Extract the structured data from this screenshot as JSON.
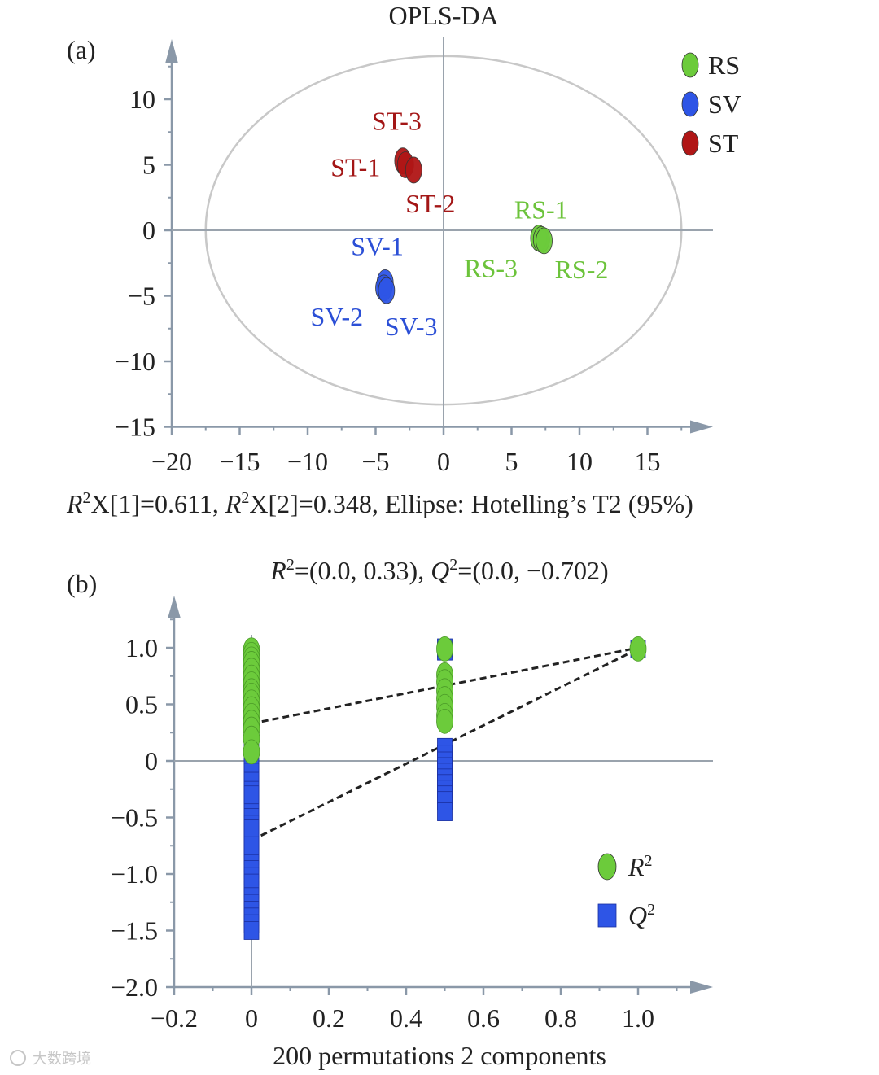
{
  "chart_data": [
    {
      "panel_label": "(a)",
      "type": "scatter",
      "title": "OPLS-DA",
      "xlabel": "",
      "ylabel": "",
      "xlim": [
        -20,
        19
      ],
      "ylim": [
        -15,
        14
      ],
      "xticks": [
        -20,
        -15,
        -10,
        -5,
        0,
        5,
        10,
        15
      ],
      "yticks": [
        -15,
        -10,
        -5,
        0,
        5,
        10
      ],
      "xtick_labels": [
        "−20",
        "−15",
        "−10",
        "−5",
        "0",
        "5",
        "10",
        "15"
      ],
      "ytick_labels": [
        "−15",
        "−10",
        "−5",
        "0",
        "5",
        "10"
      ],
      "caption_parts": [
        "R",
        "2",
        "X[1]=0.611, ",
        "R",
        "2",
        "X[2]=0.348, Ellipse: Hotelling’s T2 (95%)"
      ],
      "ellipse": {
        "cx": 0,
        "cy": 0,
        "rx": 17.5,
        "ry": 13.3,
        "color": "#c8c8c8"
      },
      "legend": {
        "position": "top-right",
        "entries": [
          "RS",
          "SV",
          "ST"
        ]
      },
      "series": [
        {
          "name": "RS",
          "color": "#6ccb3b",
          "text_color": "#6cc33b",
          "points": [
            {
              "label": "RS-1",
              "x": 7.0,
              "y": -0.6
            },
            {
              "label": "RS-3",
              "x": 7.2,
              "y": -0.7
            },
            {
              "label": "RS-2",
              "x": 7.4,
              "y": -0.8
            }
          ]
        },
        {
          "name": "SV",
          "color": "#2e55e6",
          "text_color": "#2b4fd6",
          "points": [
            {
              "label": "SV-1",
              "x": -4.3,
              "y": -4.0
            },
            {
              "label": "SV-2",
              "x": -4.4,
              "y": -4.4
            },
            {
              "label": "SV-3",
              "x": -4.2,
              "y": -4.6
            }
          ]
        },
        {
          "name": "ST",
          "color": "#b01616",
          "text_color": "#a31616",
          "points": [
            {
              "label": "ST-3",
              "x": -3.0,
              "y": 5.3
            },
            {
              "label": "ST-1",
              "x": -2.8,
              "y": 5.0
            },
            {
              "label": "ST-2",
              "x": -2.2,
              "y": 4.6
            }
          ]
        }
      ]
    },
    {
      "panel_label": "(b)",
      "type": "scatter",
      "title_parts": [
        "R",
        "2",
        "=(0.0, 0.33), ",
        "Q",
        "2",
        "=(0.0, −0.702)"
      ],
      "xlabel": "200 permutations 2 components",
      "ylabel": "",
      "xlim": [
        -0.2,
        1.15
      ],
      "ylim": [
        -2.0,
        1.45
      ],
      "xticks": [
        -0.2,
        0,
        0.2,
        0.4,
        0.6,
        0.8,
        1.0
      ],
      "yticks": [
        -2.0,
        -1.5,
        -1.0,
        -0.5,
        0,
        0.5,
        1.0
      ],
      "xtick_labels": [
        "−0.2",
        "0",
        "0.2",
        "0.4",
        "0.6",
        "0.8",
        "1.0"
      ],
      "ytick_labels": [
        "−2.0",
        "−1.5",
        "−1.0",
        "−0.5",
        "0",
        "0.5",
        "1.0"
      ],
      "legend": {
        "position": "bottom-right",
        "entries": [
          [
            "R",
            "2"
          ],
          [
            "Q",
            "2"
          ]
        ]
      },
      "series": [
        {
          "name": "R2",
          "marker": "circle",
          "color": "#6ccb3b",
          "x": [
            0,
            0,
            0,
            0,
            0,
            0,
            0,
            0,
            0,
            0,
            0,
            0,
            0,
            0,
            0,
            0,
            0.5,
            0.5,
            0.5,
            0.5,
            0.5,
            0.5,
            0.5,
            0.5,
            1.0
          ],
          "y": [
            0.98,
            0.94,
            0.9,
            0.86,
            0.8,
            0.74,
            0.68,
            0.62,
            0.58,
            0.52,
            0.46,
            0.4,
            0.34,
            0.28,
            0.2,
            0.08,
            0.99,
            0.76,
            0.7,
            0.62,
            0.55,
            0.48,
            0.4,
            0.35,
            0.99
          ]
        },
        {
          "name": "Q2",
          "marker": "square",
          "color": "#2e55e6",
          "x": [
            0,
            0,
            0,
            0,
            0,
            0,
            0,
            0,
            0,
            0,
            0,
            0,
            0,
            0,
            0,
            0,
            0,
            0,
            0,
            0,
            0,
            0,
            0,
            0,
            0,
            0,
            0,
            0,
            0,
            0.5,
            0.5,
            0.5,
            0.5,
            0.5,
            0.5,
            0.5,
            0.5,
            0.5,
            0.5,
            0.5,
            0.5,
            0.5,
            1.0
          ],
          "y": [
            0.12,
            0.05,
            -0.02,
            -0.1,
            -0.18,
            -0.26,
            -0.34,
            -0.42,
            -0.5,
            -0.56,
            -0.62,
            -0.68,
            -0.72,
            -0.78,
            -0.84,
            -0.9,
            -0.96,
            -1.02,
            -1.08,
            -1.14,
            -1.2,
            -1.26,
            -1.32,
            -1.38,
            -1.44,
            -1.5,
            -0.3,
            -0.6,
            -0.75,
            1.0,
            0.97,
            0.12,
            0.06,
            0.0,
            -0.05,
            -0.1,
            -0.15,
            -0.2,
            -0.25,
            -0.3,
            -0.35,
            -0.45,
            0.99
          ]
        }
      ],
      "regression_lines": [
        {
          "name": "R2",
          "intercept": 0.33,
          "slope_end": 1.0
        },
        {
          "name": "Q2",
          "intercept": -0.702,
          "slope_end": 0.99
        }
      ]
    }
  ],
  "watermark": "大数跨境"
}
